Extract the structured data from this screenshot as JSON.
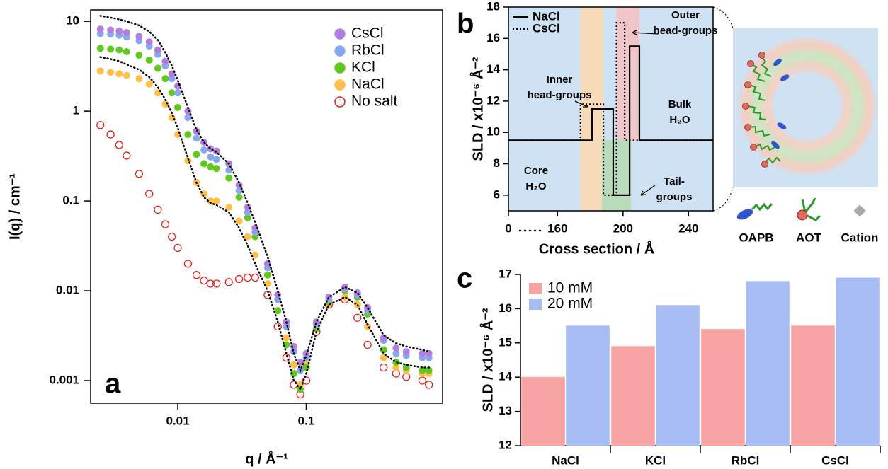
{
  "chart_data": [
    {
      "type": "scatter",
      "panel_label": "a",
      "xlabel": "q / Å⁻¹",
      "ylabel": "I(q) / cm⁻¹",
      "xscale": "log",
      "yscale": "log",
      "xlim": [
        0.0021,
        1.15
      ],
      "ylim": [
        0.00056,
        13.4
      ],
      "xticks": [
        0.01,
        0.1
      ],
      "yticks": [
        0.001,
        0.01,
        0.1,
        1,
        10
      ],
      "legend": "upper right",
      "x": [
        0.0025,
        0.003,
        0.0035,
        0.004,
        0.005,
        0.006,
        0.007,
        0.008,
        0.009,
        0.01,
        0.012,
        0.014,
        0.016,
        0.018,
        0.02,
        0.025,
        0.03,
        0.035,
        0.04,
        0.05,
        0.06,
        0.07,
        0.08,
        0.09,
        0.1,
        0.12,
        0.15,
        0.2,
        0.25,
        0.3,
        0.4,
        0.5,
        0.6,
        0.8,
        0.9
      ],
      "series": [
        {
          "name": "CsCl",
          "color": "#b27fe0",
          "marker": "filled",
          "values": [
            8.2,
            8.0,
            7.8,
            7.5,
            6.8,
            5.9,
            4.8,
            3.6,
            2.6,
            1.9,
            1.0,
            0.6,
            0.45,
            0.38,
            0.36,
            0.26,
            0.15,
            0.085,
            0.05,
            0.02,
            0.009,
            0.0045,
            0.0024,
            0.0016,
            0.002,
            0.0045,
            0.0085,
            0.011,
            0.0095,
            0.0065,
            0.003,
            0.0023,
            0.0021,
            0.002,
            0.002
          ]
        },
        {
          "name": "RbCl",
          "color": "#86a8f0",
          "marker": "filled",
          "values": [
            7.3,
            7.2,
            7.0,
            6.7,
            6.1,
            5.3,
            4.3,
            3.2,
            2.3,
            1.6,
            0.85,
            0.5,
            0.37,
            0.31,
            0.29,
            0.22,
            0.13,
            0.075,
            0.045,
            0.018,
            0.008,
            0.004,
            0.0021,
            0.0013,
            0.0018,
            0.0042,
            0.008,
            0.0105,
            0.009,
            0.006,
            0.0028,
            0.002,
            0.0019,
            0.0018,
            0.0018
          ]
        },
        {
          "name": "KCl",
          "color": "#62c81e",
          "marker": "filled",
          "values": [
            5.0,
            4.9,
            4.8,
            4.6,
            4.2,
            3.7,
            3.0,
            2.3,
            1.6,
            1.1,
            0.55,
            0.33,
            0.26,
            0.24,
            0.23,
            0.18,
            0.11,
            0.065,
            0.04,
            0.015,
            0.006,
            0.0025,
            0.0012,
            0.0008,
            0.0014,
            0.0038,
            0.0075,
            0.01,
            0.0085,
            0.0055,
            0.0022,
            0.0016,
            0.0014,
            0.0013,
            0.0013
          ]
        },
        {
          "name": "NaCl",
          "color": "#ffbf48",
          "marker": "filled",
          "values": [
            2.8,
            2.7,
            2.6,
            2.5,
            2.3,
            2.0,
            1.6,
            1.2,
            0.85,
            0.55,
            0.28,
            0.16,
            0.12,
            0.1,
            0.1,
            0.085,
            0.06,
            0.04,
            0.025,
            0.012,
            0.006,
            0.003,
            0.0015,
            0.0009,
            0.0015,
            0.0038,
            0.0072,
            0.0085,
            0.007,
            0.004,
            0.0018,
            0.0014,
            0.0013,
            0.0012,
            0.0012
          ]
        },
        {
          "name": "No salt",
          "color": "#e8201c",
          "marker": "open",
          "values": [
            0.7,
            0.55,
            0.42,
            0.32,
            0.2,
            0.12,
            0.08,
            0.055,
            0.04,
            0.03,
            0.02,
            0.015,
            0.013,
            0.012,
            0.012,
            0.0125,
            0.0135,
            0.014,
            0.014,
            0.009,
            0.004,
            0.0018,
            0.0009,
            0.0007,
            0.001,
            0.0035,
            0.007,
            0.008,
            0.005,
            0.0025,
            0.0014,
            0.0012,
            0.0011,
            0.001,
            0.0009
          ]
        },
        {
          "color": "#000000",
          "style": "dotted",
          "values": [
            11.5,
            11,
            10.5,
            10,
            9,
            7.7,
            6.2,
            4.5,
            3.2,
            2.2,
            1.1,
            0.62,
            0.45,
            0.38,
            0.35,
            0.26,
            0.16,
            0.095,
            0.058,
            0.024,
            0.01,
            0.0045,
            0.002,
            0.0013,
            0.0019,
            0.0045,
            0.0085,
            0.011,
            0.0095,
            0.0065,
            0.0032,
            0.0026,
            0.0024,
            0.0022,
            0.0021
          ]
        },
        {
          "color": "#000000",
          "style": "dotted",
          "values": [
            4.0,
            3.8,
            3.6,
            3.3,
            2.9,
            2.4,
            1.85,
            1.35,
            0.95,
            0.65,
            0.3,
            0.16,
            0.11,
            0.095,
            0.09,
            0.075,
            0.05,
            0.032,
            0.02,
            0.01,
            0.0045,
            0.002,
            0.001,
            0.0008,
            0.0012,
            0.0035,
            0.007,
            0.0085,
            0.007,
            0.0042,
            0.002,
            0.0016,
            0.0015,
            0.0014,
            0.0014
          ]
        }
      ]
    },
    {
      "type": "line",
      "panel_label": "b",
      "xlabel": "Cross section / Å",
      "ylabel": "SLD / x10⁻⁶ Å⁻²",
      "xlim": [
        0,
        255
      ],
      "xbreak": [
        0,
        130
      ],
      "ylim": [
        5,
        18
      ],
      "xticks": [
        0,
        160,
        200,
        240
      ],
      "yticks": [
        6,
        8,
        10,
        12,
        14,
        16,
        18
      ],
      "legend": "upper left",
      "background": "#cfe2f3",
      "regions": [
        {
          "x": [
            174,
            188
          ],
          "y": [
            5,
            18
          ],
          "color": "#fbd9b4"
        },
        {
          "x": [
            187,
            205
          ],
          "y": [
            5,
            9.5
          ],
          "color": "#b5dcb5"
        },
        {
          "x": [
            196,
            210
          ],
          "y": [
            9.5,
            18
          ],
          "color": "#f4c3c3"
        }
      ],
      "series": [
        {
          "name": "NaCl",
          "color": "#000000",
          "style": "solid",
          "x": [
            0,
            181,
            181,
            194,
            194,
            204,
            204,
            210,
            210,
            255
          ],
          "values": [
            9.5,
            9.5,
            11.5,
            11.5,
            6,
            6,
            15.5,
            15.5,
            9.5,
            9.5
          ]
        },
        {
          "name": "CsCl",
          "color": "#000000",
          "style": "dotted",
          "x": [
            0,
            174,
            174,
            188,
            188,
            196,
            196,
            201,
            201,
            255
          ],
          "values": [
            9.5,
            9.5,
            11.8,
            11.8,
            6,
            6,
            17,
            17,
            9.5,
            9.5
          ]
        }
      ],
      "annotations": [
        {
          "text": [
            "Inner",
            "head-groups"
          ]
        },
        {
          "text": [
            "Outer",
            "head-groups"
          ]
        },
        {
          "text": [
            "Bulk",
            "H₂O"
          ]
        },
        {
          "text": [
            "Core",
            "H₂O"
          ]
        },
        {
          "text": [
            "Tail-",
            "groups"
          ]
        }
      ]
    },
    {
      "type": "bar",
      "panel_label": "c",
      "ylabel": "SLD / x10⁻⁶ Å⁻²",
      "categories": [
        "NaCl",
        "KCl",
        "RbCl",
        "CsCl"
      ],
      "ylim": [
        12,
        17
      ],
      "yticks": [
        12,
        13,
        14,
        15,
        16,
        17
      ],
      "legend": "upper left",
      "series": [
        {
          "name": "10 mM",
          "color": "#f8a3a3",
          "values": [
            14.0,
            14.9,
            15.4,
            15.5
          ]
        },
        {
          "name": "20 mM",
          "color": "#a8bcf4",
          "values": [
            15.5,
            16.1,
            16.8,
            16.9
          ]
        }
      ]
    }
  ],
  "schematic": {
    "labels": [
      "OAPB",
      "AOT",
      "Cation"
    ]
  }
}
